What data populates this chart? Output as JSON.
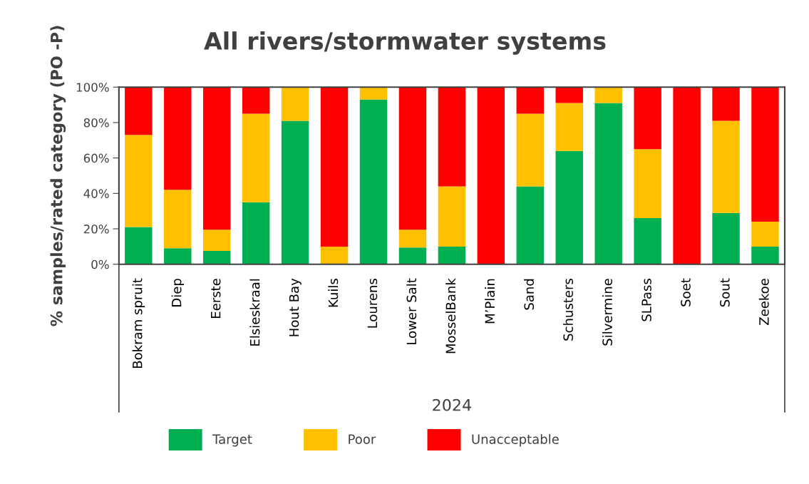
{
  "chart_data": {
    "type": "bar",
    "stacked": true,
    "title": "All rivers/stormwater systems",
    "xlabel": "2024",
    "ylabel": "% samples/rated category (PO -P)",
    "categories": [
      "Bokram spruit",
      "Diep",
      "Eerste",
      "Elsieskraal",
      "Hout Bay",
      "Kuils",
      "Lourens",
      "Lower Salt",
      "MosselBank",
      "M’Plain",
      "Sand",
      "Schusters",
      "Silvermine",
      "SLPass",
      "Soet",
      "Sout",
      "Zeekoe"
    ],
    "series": [
      {
        "name": "Target",
        "color": "#00b050",
        "values": [
          21,
          9,
          7.5,
          35,
          81,
          0,
          93,
          9.5,
          10,
          0,
          44,
          64,
          91,
          26,
          0,
          29,
          10
        ]
      },
      {
        "name": "Poor",
        "color": "#ffc000",
        "values": [
          52,
          33,
          12,
          50,
          19,
          10,
          7,
          10,
          34,
          0,
          41,
          27,
          9,
          39,
          0,
          52,
          14
        ]
      },
      {
        "name": "Unacceptable",
        "color": "#ff0000",
        "values": [
          27,
          58,
          80.5,
          15,
          0,
          90,
          0,
          80.5,
          56,
          100,
          15,
          9,
          0,
          35,
          100,
          19,
          76
        ]
      }
    ],
    "ylim": [
      0,
      100
    ],
    "yticks": [
      {
        "value": 0,
        "label": "0%"
      },
      {
        "value": 20,
        "label": "20%"
      },
      {
        "value": 40,
        "label": "40%"
      },
      {
        "value": 60,
        "label": "60%"
      },
      {
        "value": 80,
        "label": "80%"
      },
      {
        "value": 100,
        "label": "100%"
      }
    ],
    "grid": false,
    "legend": "bottom"
  }
}
